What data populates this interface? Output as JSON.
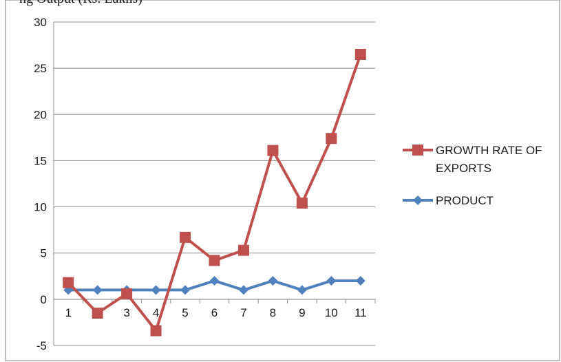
{
  "header_fragment": "ng Output (Rs. Lakhs)",
  "chart_data": {
    "type": "line",
    "title": "",
    "xlabel": "",
    "ylabel": "",
    "categories": [
      "1",
      "2",
      "3",
      "4",
      "5",
      "6",
      "7",
      "8",
      "9",
      "10",
      "11"
    ],
    "ylim": [
      -5,
      30
    ],
    "yticks": [
      -5,
      0,
      5,
      10,
      15,
      20,
      25,
      30
    ],
    "grid": "horizontal",
    "legend_position": "right",
    "series": [
      {
        "name": "GROWTH RATE OF EXPORTS",
        "legend_lines": [
          "GROWTH RATE OF",
          "EXPORTS"
        ],
        "color": "#c0504d",
        "marker": "square",
        "values": [
          1.8,
          -1.5,
          0.6,
          -3.4,
          6.7,
          4.2,
          5.3,
          16.1,
          10.4,
          17.4,
          26.5
        ]
      },
      {
        "name": "PRODUCT",
        "legend_lines": [
          "PRODUCT"
        ],
        "color": "#4f81bd",
        "marker": "diamond",
        "values": [
          1,
          1,
          1,
          1,
          1,
          2,
          1,
          2,
          1,
          2,
          2
        ]
      }
    ]
  }
}
